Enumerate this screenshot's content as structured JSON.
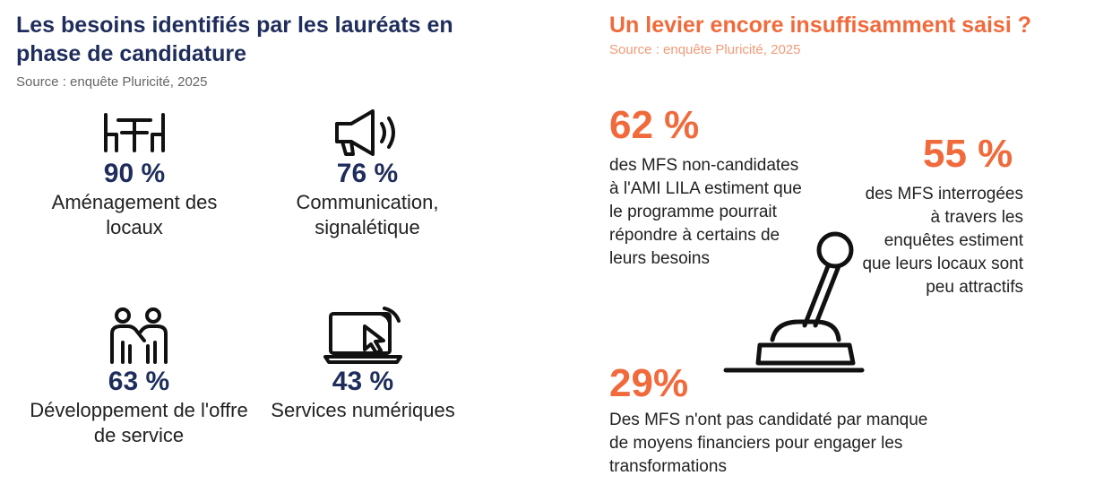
{
  "left": {
    "title": "Les besoins identifiés par les lauréats en phase de candidature",
    "source": "Source : enquête Pluricité, 2025",
    "stats": [
      {
        "pct": "90 %",
        "label": "Aménagement des locaux",
        "icon": "table-chairs-icon"
      },
      {
        "pct": "76 %",
        "label": "Communication, signalétique",
        "icon": "megaphone-icon"
      },
      {
        "pct": "63 %",
        "label": "Développement de l'offre de service",
        "icon": "people-helping-icon"
      },
      {
        "pct": "43 %",
        "label": "Services numériques",
        "icon": "laptop-cursor-icon"
      }
    ]
  },
  "right": {
    "title": "Un levier encore insuffisamment saisi ?",
    "source": "Source : enquête Pluricité, 2025",
    "facts": [
      {
        "pct": "62 %",
        "text": "des MFS non-candidates à l'AMI LILA estiment que le programme pourrait répondre à certains de leurs besoins"
      },
      {
        "pct": "55 %",
        "text": "des MFS interrogées à travers les enquêtes estiment que leurs locaux sont peu attractifs"
      },
      {
        "pct": "29%",
        "text": "Des MFS n'ont pas candidaté par manque de moyens financiers pour engager les transformations"
      }
    ],
    "icon": "joystick-lever-icon",
    "accent_color": "#f06a3c",
    "primary_color": "#1f2d5c"
  }
}
